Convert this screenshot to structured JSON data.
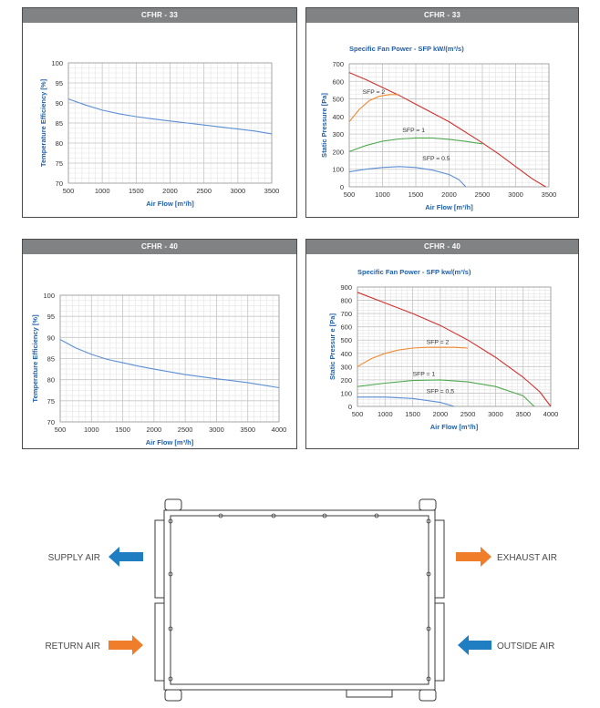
{
  "chart_data": [
    {
      "title": "CFHR - 33",
      "type": "line",
      "xlabel": "Air Flow [m³/h]",
      "ylabel": "Temperature Efficiency [%]",
      "xlim": [
        500,
        3500
      ],
      "ylim": [
        70,
        100
      ],
      "xticks": [
        "500",
        "1000",
        "1500",
        "2000",
        "2500",
        "3000",
        "3500"
      ],
      "yticks": [
        "70",
        "75",
        "80",
        "85",
        "90",
        "95",
        "100"
      ],
      "grid": true,
      "series": [
        {
          "color": "#5b8fd6",
          "x": [
            500,
            750,
            1000,
            1250,
            1500,
            1750,
            2000,
            2250,
            2500,
            2750,
            3000,
            3250,
            3500
          ],
          "y": [
            91,
            89.5,
            88.2,
            87.3,
            86.6,
            86.0,
            85.5,
            85.0,
            84.5,
            84.0,
            83.5,
            83.0,
            82.3
          ]
        }
      ]
    },
    {
      "title": "CFHR - 33",
      "subtitle": "Specific Fan Power - SFP kW/(m³/s)",
      "type": "line",
      "xlabel": "Air Flow [m³/h]",
      "ylabel": "Static Pressure [Pa]",
      "xlim": [
        500,
        3500
      ],
      "ylim": [
        0,
        700
      ],
      "xticks": [
        "500",
        "1000",
        "1500",
        "2000",
        "2500",
        "3000",
        "3500"
      ],
      "yticks": [
        "0",
        "100",
        "200",
        "300",
        "400",
        "500",
        "600",
        "700"
      ],
      "grid": true,
      "series": [
        {
          "color": "#d0312d",
          "x": [
            500,
            750,
            1000,
            1250,
            1500,
            1750,
            2000,
            2250,
            2500,
            2750,
            3000,
            3250,
            3450
          ],
          "y": [
            650,
            610,
            565,
            520,
            470,
            420,
            370,
            310,
            250,
            185,
            115,
            45,
            0
          ]
        },
        {
          "color": "#f08a32",
          "x": [
            500,
            650,
            800,
            950,
            1100,
            1250
          ],
          "y": [
            370,
            440,
            490,
            515,
            525,
            525
          ]
        },
        {
          "color": "#4faa4f",
          "x": [
            500,
            750,
            1000,
            1250,
            1500,
            1750,
            2000,
            2250,
            2500
          ],
          "y": [
            200,
            235,
            260,
            272,
            278,
            278,
            270,
            258,
            245
          ]
        },
        {
          "color": "#5b8fd6",
          "x": [
            500,
            750,
            1000,
            1250,
            1500,
            1750,
            2000,
            2150,
            2250
          ],
          "y": [
            85,
            100,
            110,
            115,
            110,
            95,
            70,
            40,
            0
          ]
        }
      ],
      "annotations": [
        "SFP = 2",
        "SFP = 1",
        "SFP = 0.5"
      ]
    },
    {
      "title": "CFHR - 40",
      "type": "line",
      "xlabel": "Air Flow [m³/h]",
      "ylabel": "Temperature Efficiency [%]",
      "xlim": [
        500,
        4000
      ],
      "ylim": [
        70,
        100
      ],
      "xticks": [
        "500",
        "1000",
        "1500",
        "2000",
        "2500",
        "3000",
        "3500",
        "4000"
      ],
      "yticks": [
        "70",
        "75",
        "80",
        "85",
        "90",
        "95",
        "100"
      ],
      "grid": true,
      "series": [
        {
          "color": "#5b8fd6",
          "x": [
            500,
            750,
            1000,
            1250,
            1500,
            1750,
            2000,
            2500,
            3000,
            3500,
            4000
          ],
          "y": [
            89.5,
            87.5,
            86.0,
            84.8,
            84.0,
            83.2,
            82.5,
            81.2,
            80.2,
            79.3,
            78.1
          ]
        }
      ]
    },
    {
      "title": "CFHR - 40",
      "subtitle": "Specific Fan Power - SFP kw/(m³/s)",
      "type": "line",
      "xlabel": "Air Flow [m³/h]",
      "ylabel": "Static Pressur e [Pa]",
      "xlim": [
        500,
        4000
      ],
      "ylim": [
        0,
        900
      ],
      "xticks": [
        "500",
        "1000",
        "1500",
        "2000",
        "2500",
        "3000",
        "3500",
        "4000"
      ],
      "yticks": [
        "0",
        "100",
        "200",
        "300",
        "400",
        "500",
        "600",
        "700",
        "800",
        "900"
      ],
      "grid": true,
      "series": [
        {
          "color": "#d0312d",
          "x": [
            500,
            1000,
            1500,
            2000,
            2500,
            3000,
            3500,
            3800,
            4000
          ],
          "y": [
            860,
            780,
            700,
            610,
            500,
            370,
            220,
            110,
            0
          ]
        },
        {
          "color": "#f08a32",
          "x": [
            500,
            750,
            1000,
            1250,
            1500,
            1750,
            2000,
            2250,
            2500
          ],
          "y": [
            300,
            360,
            400,
            425,
            440,
            445,
            445,
            445,
            440
          ]
        },
        {
          "color": "#4faa4f",
          "x": [
            500,
            1000,
            1500,
            2000,
            2500,
            3000,
            3500,
            3700
          ],
          "y": [
            150,
            175,
            195,
            200,
            185,
            150,
            80,
            0
          ]
        },
        {
          "color": "#5b8fd6",
          "x": [
            500,
            1000,
            1500,
            2000,
            2250
          ],
          "y": [
            70,
            70,
            60,
            30,
            0
          ]
        }
      ],
      "annotations": [
        "SFP = 2",
        "SFP = 1",
        "SFP = 0,5"
      ]
    }
  ],
  "diagram": {
    "labels": {
      "supply": "SUPPLY AIR",
      "exhaust": "EXHAUST AIR",
      "return": "RETURN AIR",
      "outside": "OUTSIDE AIR"
    },
    "colors": {
      "blue": "#1f7ec2",
      "orange": "#f07d2a",
      "line": "#3a3a3a"
    }
  }
}
